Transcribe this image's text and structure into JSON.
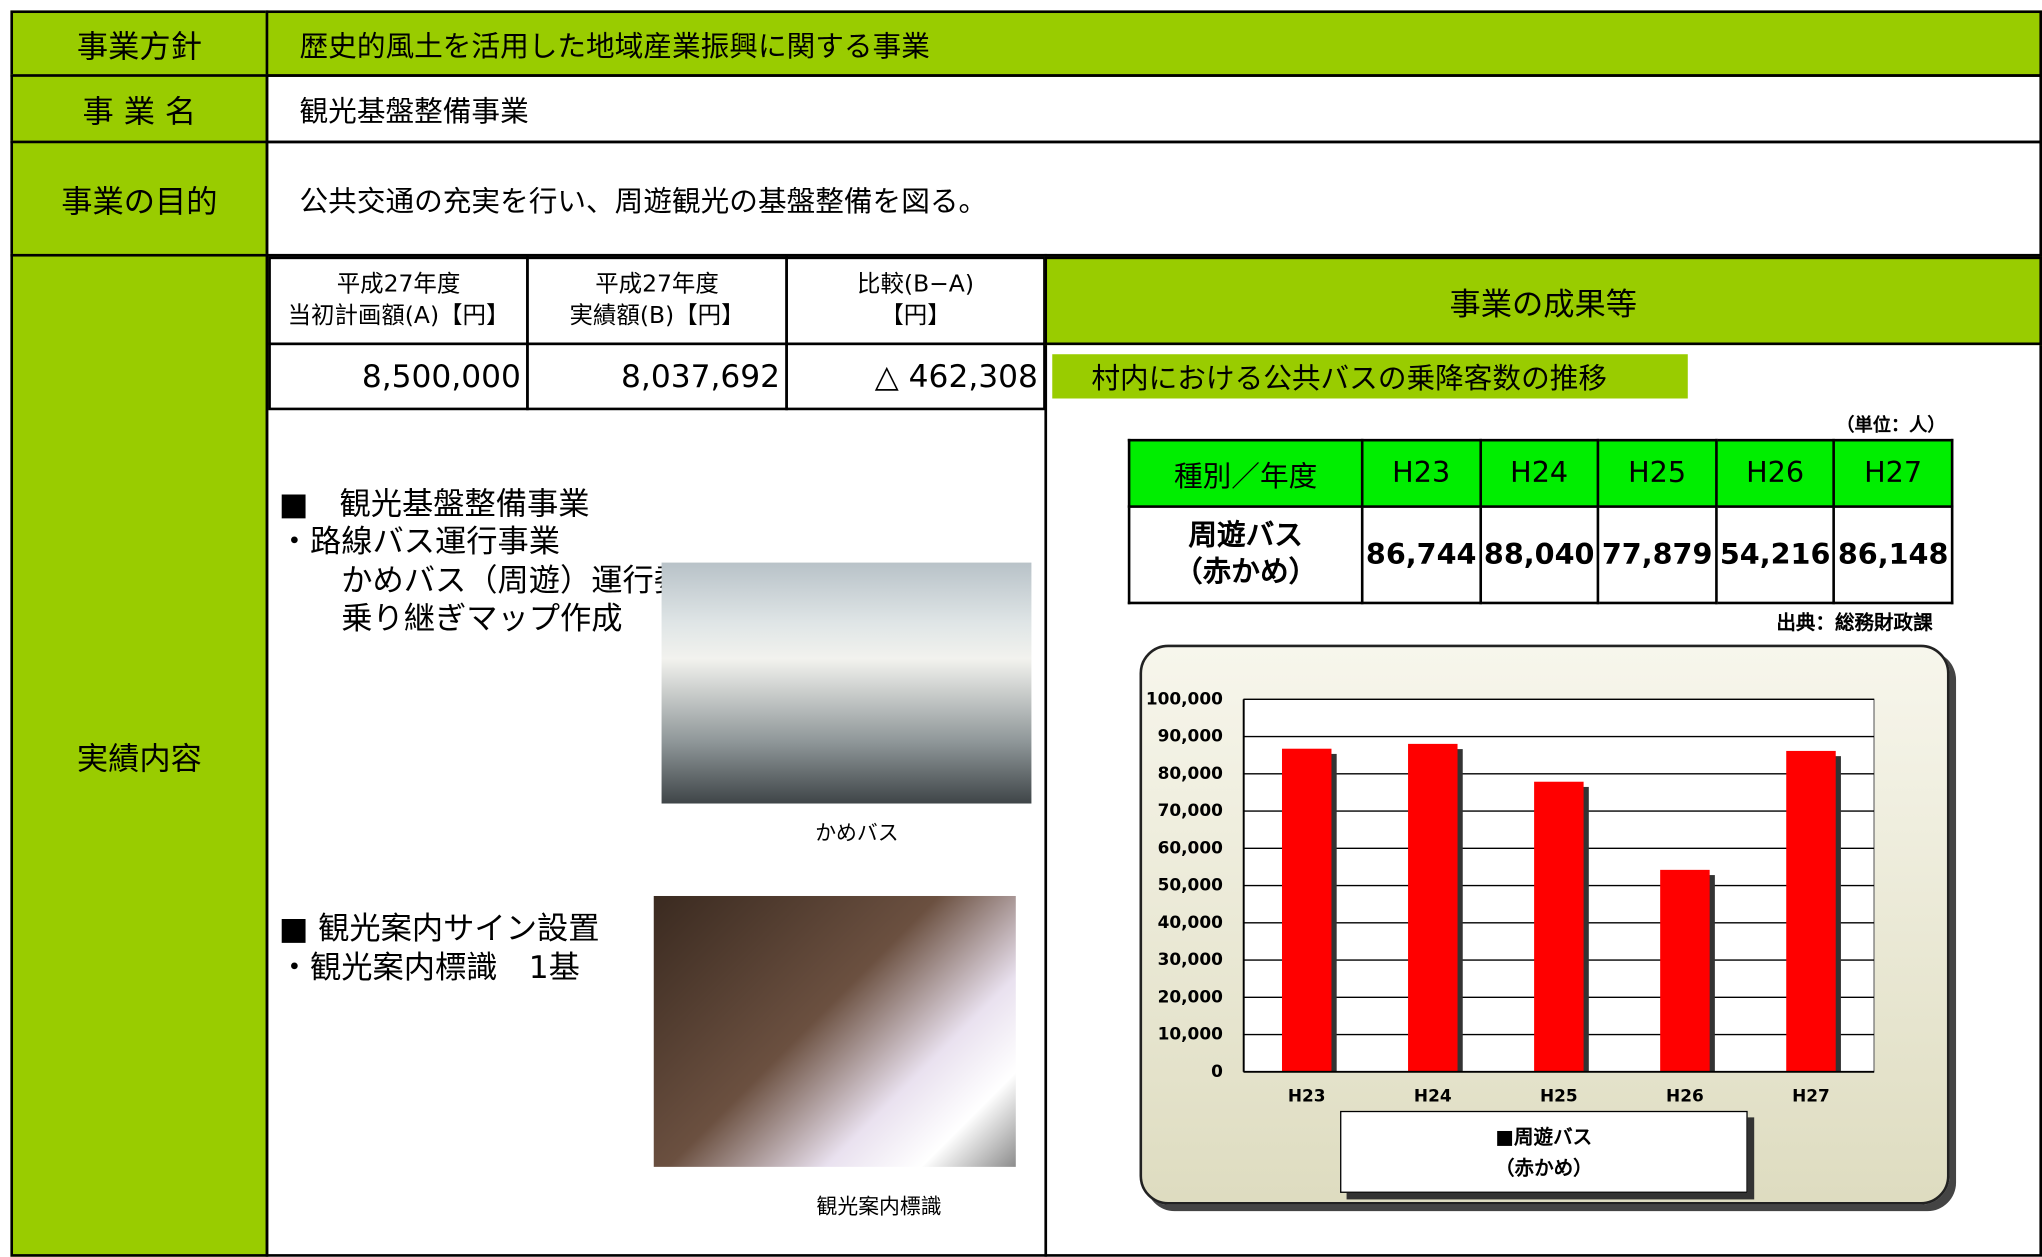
{
  "rows": [
    {
      "label": "事業方針",
      "content": "歴史的風土を活用した地域産業振興に関する事業"
    },
    {
      "label": "事 業 名",
      "content": "観光基盤整備事業"
    },
    {
      "label": "事業の目的",
      "content": "公共交通の充実を行い、周遊観光の基盤整備を図る。"
    },
    {
      "label": "実績内容"
    }
  ],
  "budget": {
    "headers": [
      [
        "平成27年度",
        "当初計画額(A)【円】"
      ],
      [
        "平成27年度",
        "実績額(B)【円】"
      ],
      [
        "比較(B−A)",
        "【円】"
      ]
    ],
    "values": [
      "8,500,000",
      "8,037,692",
      "△ 462,308"
    ]
  },
  "details": {
    "section1": [
      "■　観光基盤整備事業",
      "・路線バス運行事業",
      "　　かめバス（周遊）運行委託",
      "　　乗り継ぎマップ作成"
    ],
    "photo1_caption": "かめバス",
    "section2": [
      "■ 観光案内サイン設置",
      "・観光案内標識　1基"
    ],
    "photo2_caption": "観光案内標識"
  },
  "results": {
    "title": "事業の成果等",
    "subtitle": "村内における公共バスの乗降客数の推移",
    "unit": "（単位：人）",
    "table_header": "種別／年度",
    "row_header": [
      "周遊バス",
      "（赤かめ）"
    ],
    "source": "出典：総務財政課"
  },
  "chart_data": {
    "type": "bar",
    "categories": [
      "H23",
      "H24",
      "H25",
      "H26",
      "H27"
    ],
    "series": [
      {
        "name": "■周遊バス\n（赤かめ）",
        "color": "#ff0000",
        "values": [
          86744,
          88040,
          77879,
          54216,
          86148
        ],
        "value_labels": [
          "86,744",
          "88,040",
          "77,879",
          "54,216",
          "86,148"
        ]
      }
    ],
    "ylim": [
      0,
      100000
    ],
    "yticks": [
      0,
      {
        "value": 10000,
        "label": "10,000"
      },
      {
        "value": 20000,
        "label": "20,000"
      },
      {
        "value": 30000,
        "label": "30,000"
      },
      {
        "value": 40000,
        "label": "40,000"
      },
      {
        "value": 50000,
        "label": "50,000"
      },
      {
        "value": 60000,
        "label": "60,000"
      },
      {
        "value": 70000,
        "label": "70,000"
      },
      {
        "value": 80000,
        "label": "80,000"
      },
      {
        "value": 90000,
        "label": "90,000"
      },
      {
        "value": 100000,
        "label": "100,000"
      }
    ],
    "grid": true
  }
}
